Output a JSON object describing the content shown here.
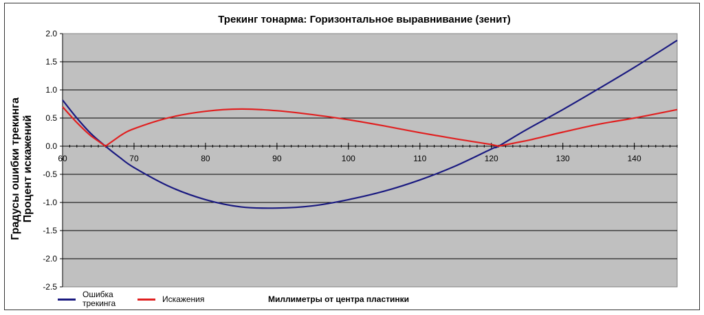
{
  "chart_data": {
    "type": "line",
    "title": "Трекинг тонарма: Горизонтальное выравнивание (зенит)",
    "xlabel": "Миллиметры от центра пластинки",
    "ylabel_line1": "Градусы ошибки трекинга",
    "ylabel_line2": "Процент искажений",
    "xlim": [
      60,
      146
    ],
    "ylim": [
      -2.5,
      2.0
    ],
    "x_ticks": [
      60,
      70,
      80,
      90,
      100,
      110,
      120,
      130,
      140
    ],
    "y_ticks": [
      "2.0",
      "1.5",
      "1.0",
      "0.5",
      "0.0",
      "-0.5",
      "-1.0",
      "-1.5",
      "-2.0",
      "-2.5"
    ],
    "grid": true,
    "legend_position": "bottom-left",
    "x": [
      60,
      62,
      64,
      66,
      68,
      70,
      75,
      80,
      85,
      90,
      95,
      100,
      105,
      110,
      115,
      120,
      121,
      125,
      130,
      135,
      140,
      146
    ],
    "series": [
      {
        "name": "Ошибка трекинга",
        "color": "#1a1a80",
        "values": [
          0.82,
          0.5,
          0.22,
          0.0,
          -0.2,
          -0.38,
          -0.72,
          -0.95,
          -1.08,
          -1.1,
          -1.06,
          -0.95,
          -0.8,
          -0.6,
          -0.35,
          -0.05,
          0.0,
          0.3,
          0.65,
          1.02,
          1.4,
          1.88
        ]
      },
      {
        "name": "Искажения",
        "color": "#e02020",
        "values": [
          0.7,
          0.42,
          0.18,
          0.0,
          0.18,
          0.31,
          0.51,
          0.62,
          0.66,
          0.63,
          0.56,
          0.47,
          0.36,
          0.24,
          0.13,
          0.03,
          0.0,
          0.1,
          0.25,
          0.39,
          0.5,
          0.65
        ]
      }
    ]
  },
  "legend": {
    "series1_line1": "Ошибка",
    "series1_line2": "трекинга",
    "series2": "Искажения"
  }
}
